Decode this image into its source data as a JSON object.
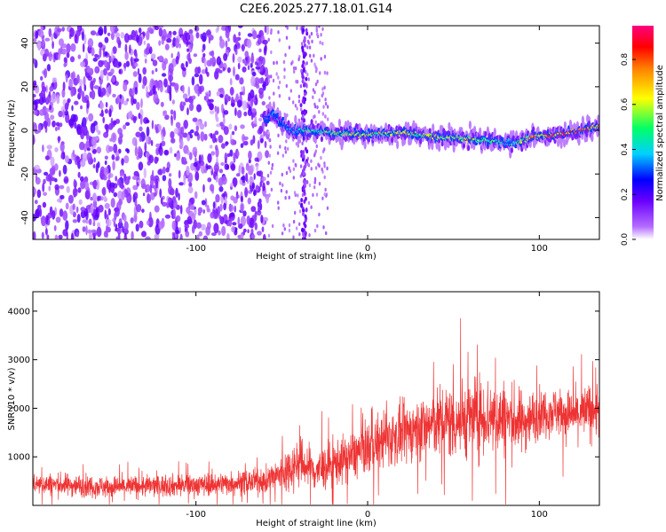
{
  "title": "C2E6.2025.277.18.01.G14",
  "chart_data": [
    {
      "type": "heatmap",
      "xlabel": "Height of straight line (km)",
      "ylabel": "Frequency (Hz)",
      "xlim": [
        -195,
        135
      ],
      "ylim": [
        -50,
        48
      ],
      "xticks": [
        -100,
        0,
        100
      ],
      "yticks": [
        -40,
        -20,
        0,
        20,
        40
      ],
      "colorbar": {
        "label": "Normalized spectral amplitude",
        "range": [
          0,
          0.95
        ],
        "ticks": [
          0.0,
          0.2,
          0.4,
          0.6,
          0.8
        ],
        "colors": [
          "#ffffff",
          "#9b30ff",
          "#0000ff",
          "#00e5ff",
          "#00ff66",
          "#ffff00",
          "#ff8000",
          "#ff0000",
          "#ff0080"
        ]
      },
      "noise_region": {
        "x_range": [
          -195,
          -58
        ],
        "y_range": [
          -50,
          48
        ],
        "amplitude": 0.15
      },
      "narrow_band": {
        "x": -37,
        "y_range": [
          -50,
          48
        ]
      },
      "ridge": {
        "x": [
          -60,
          -55,
          -50,
          -45,
          -35,
          -20,
          0,
          20,
          40,
          60,
          75,
          85,
          95,
          110,
          125,
          135
        ],
        "freq": [
          5,
          8,
          3,
          0,
          0,
          -1,
          -2,
          -1,
          -3,
          -4,
          -5,
          -6,
          -3,
          -2,
          0,
          2
        ],
        "amplitude": [
          0.3,
          0.35,
          0.3,
          0.35,
          0.45,
          0.55,
          0.6,
          0.6,
          0.55,
          0.6,
          0.5,
          0.45,
          0.7,
          0.8,
          0.85,
          0.7
        ]
      }
    },
    {
      "type": "line",
      "xlabel": "Height of straight line (km)",
      "ylabel": "SNR (10 * v/v)",
      "xlim": [
        -195,
        135
      ],
      "ylim": [
        0,
        4400
      ],
      "xticks": [
        -100,
        0,
        100
      ],
      "yticks": [
        1000,
        2000,
        3000,
        4000
      ],
      "series": [
        {
          "color": "#ee3333",
          "trend_x": [
            -195,
            -150,
            -100,
            -60,
            -50,
            -40,
            -30,
            -20,
            -10,
            0,
            10,
            20,
            30,
            40,
            50,
            60,
            70,
            80,
            90,
            100,
            110,
            120,
            135
          ],
          "trend_snr": [
            450,
            380,
            420,
            500,
            650,
            900,
            700,
            850,
            1000,
            1200,
            1350,
            1450,
            1600,
            1700,
            1750,
            1800,
            1850,
            1800,
            1700,
            1900,
            1950,
            1850,
            2000
          ],
          "spread": [
            250,
            250,
            250,
            280,
            500,
            550,
            500,
            500,
            550,
            600,
            650,
            650,
            700,
            800,
            900,
            900,
            900,
            850,
            700,
            550,
            550,
            550,
            700
          ]
        }
      ]
    }
  ]
}
